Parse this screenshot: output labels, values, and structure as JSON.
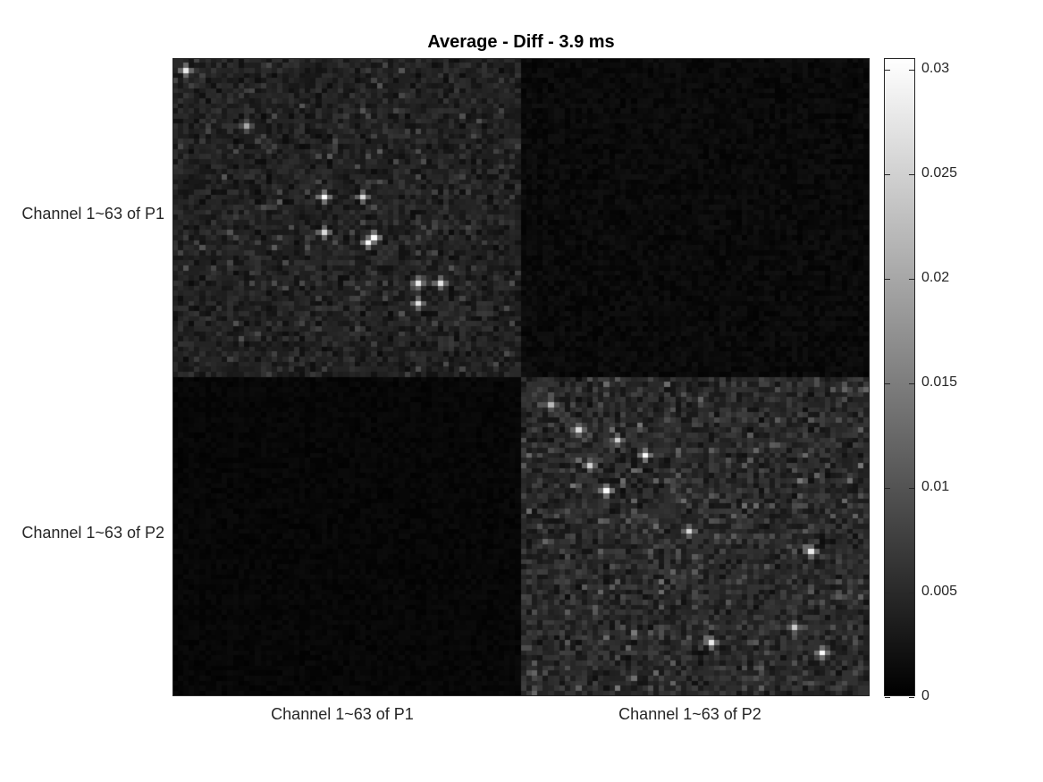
{
  "chart_data": {
    "type": "heatmap",
    "title": "Average - Diff - 3.9 ms",
    "row_labels": [
      "Channel 1~63 of P1",
      "Channel 1~63 of P2"
    ],
    "col_labels": [
      "Channel 1~63 of P1",
      "Channel 1~63 of P2"
    ],
    "channels_per_group": 63,
    "colorbar": {
      "min": 0,
      "max": 0.0305,
      "ticks": [
        0,
        0.005,
        0.01,
        0.015,
        0.02,
        0.025,
        0.03
      ],
      "tick_labels": [
        "0",
        "0.005",
        "0.01",
        "0.015",
        "0.02",
        "0.025",
        "0.03"
      ],
      "colormap": "gray"
    },
    "block_means": {
      "P1-P1": 0.004,
      "P2-P2": 0.005,
      "P1-P2": 0.0012,
      "P2-P1": 0.0008
    },
    "bright_spots": [
      {
        "row": 2,
        "col": 2,
        "value": 0.028
      },
      {
        "row": 13,
        "col": 13,
        "value": 0.02
      },
      {
        "row": 27,
        "col": 27,
        "value": 0.03
      },
      {
        "row": 27,
        "col": 34,
        "value": 0.026
      },
      {
        "row": 34,
        "col": 27,
        "value": 0.026
      },
      {
        "row": 35,
        "col": 36,
        "value": 0.03
      },
      {
        "row": 36,
        "col": 35,
        "value": 0.03
      },
      {
        "row": 44,
        "col": 44,
        "value": 0.028
      },
      {
        "row": 44,
        "col": 48,
        "value": 0.027
      },
      {
        "row": 48,
        "col": 44,
        "value": 0.027
      },
      {
        "row": 68,
        "col": 68,
        "value": 0.022
      },
      {
        "row": 73,
        "col": 73,
        "value": 0.026
      },
      {
        "row": 75,
        "col": 80,
        "value": 0.025
      },
      {
        "row": 80,
        "col": 75,
        "value": 0.025
      },
      {
        "row": 78,
        "col": 85,
        "value": 0.03
      },
      {
        "row": 85,
        "col": 78,
        "value": 0.03
      },
      {
        "row": 93,
        "col": 93,
        "value": 0.026
      },
      {
        "row": 97,
        "col": 115,
        "value": 0.028
      },
      {
        "row": 115,
        "col": 97,
        "value": 0.028
      },
      {
        "row": 112,
        "col": 112,
        "value": 0.024
      },
      {
        "row": 117,
        "col": 117,
        "value": 0.03
      }
    ]
  }
}
